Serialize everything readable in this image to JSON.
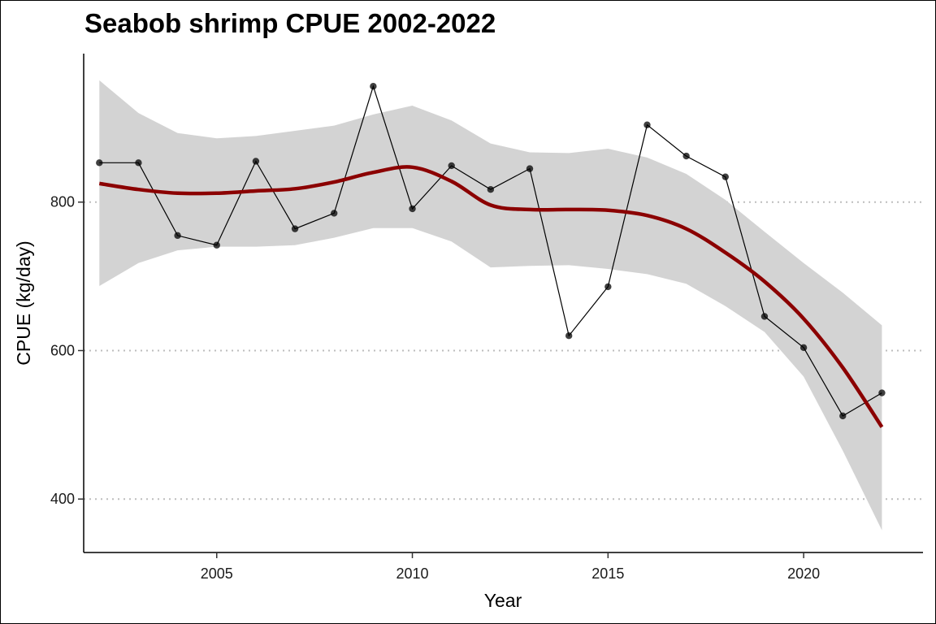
{
  "chart_data": {
    "type": "line",
    "title": "Seabob shrimp CPUE 2002-2022",
    "xlabel": "Year",
    "ylabel": "CPUE (kg/day)",
    "xlim": [
      2001.6,
      2023.05
    ],
    "ylim": [
      328,
      1000
    ],
    "xticks": [
      2005,
      2010,
      2015,
      2020
    ],
    "yticks": [
      400,
      600,
      800
    ],
    "grid": {
      "horizontal_dotted": true,
      "vertical": false
    },
    "series": [
      {
        "kind": "observed",
        "color": "#000000",
        "points": [
          {
            "x": 2002,
            "y": 853
          },
          {
            "x": 2003,
            "y": 853
          },
          {
            "x": 2004,
            "y": 755
          },
          {
            "x": 2005,
            "y": 742
          },
          {
            "x": 2006,
            "y": 855
          },
          {
            "x": 2007,
            "y": 764
          },
          {
            "x": 2008,
            "y": 785
          },
          {
            "x": 2009,
            "y": 956
          },
          {
            "x": 2010,
            "y": 791
          },
          {
            "x": 2011,
            "y": 849
          },
          {
            "x": 2012,
            "y": 817
          },
          {
            "x": 2013,
            "y": 845
          },
          {
            "x": 2014,
            "y": 620
          },
          {
            "x": 2015,
            "y": 686
          },
          {
            "x": 2016,
            "y": 904
          },
          {
            "x": 2017,
            "y": 862
          },
          {
            "x": 2018,
            "y": 834
          },
          {
            "x": 2019,
            "y": 646
          },
          {
            "x": 2020,
            "y": 604
          },
          {
            "x": 2021,
            "y": 512
          },
          {
            "x": 2022,
            "y": 543
          }
        ]
      },
      {
        "kind": "smooth",
        "color": "#8b0000",
        "points": [
          {
            "x": 2002,
            "y": 825
          },
          {
            "x": 2003,
            "y": 817
          },
          {
            "x": 2004,
            "y": 812
          },
          {
            "x": 2005,
            "y": 812
          },
          {
            "x": 2006,
            "y": 815
          },
          {
            "x": 2007,
            "y": 818
          },
          {
            "x": 2008,
            "y": 827
          },
          {
            "x": 2009,
            "y": 840
          },
          {
            "x": 2010,
            "y": 847
          },
          {
            "x": 2011,
            "y": 828
          },
          {
            "x": 2012,
            "y": 796
          },
          {
            "x": 2013,
            "y": 790
          },
          {
            "x": 2014,
            "y": 790
          },
          {
            "x": 2015,
            "y": 789
          },
          {
            "x": 2016,
            "y": 782
          },
          {
            "x": 2017,
            "y": 764
          },
          {
            "x": 2018,
            "y": 732
          },
          {
            "x": 2019,
            "y": 693
          },
          {
            "x": 2020,
            "y": 643
          },
          {
            "x": 2021,
            "y": 577
          },
          {
            "x": 2022,
            "y": 497
          }
        ]
      }
    ],
    "confidence_band": {
      "color": "#d3d3d3",
      "points": [
        {
          "x": 2002,
          "lo": 687,
          "hi": 964
        },
        {
          "x": 2003,
          "lo": 718,
          "hi": 920
        },
        {
          "x": 2004,
          "lo": 735,
          "hi": 893
        },
        {
          "x": 2005,
          "lo": 740,
          "hi": 886
        },
        {
          "x": 2006,
          "lo": 740,
          "hi": 889
        },
        {
          "x": 2007,
          "lo": 742,
          "hi": 896
        },
        {
          "x": 2008,
          "lo": 752,
          "hi": 903
        },
        {
          "x": 2009,
          "lo": 765,
          "hi": 918
        },
        {
          "x": 2010,
          "lo": 765,
          "hi": 930
        },
        {
          "x": 2011,
          "lo": 747,
          "hi": 910
        },
        {
          "x": 2012,
          "lo": 712,
          "hi": 879
        },
        {
          "x": 2013,
          "lo": 714,
          "hi": 867
        },
        {
          "x": 2014,
          "lo": 715,
          "hi": 866
        },
        {
          "x": 2015,
          "lo": 710,
          "hi": 872
        },
        {
          "x": 2016,
          "lo": 703,
          "hi": 860
        },
        {
          "x": 2017,
          "lo": 690,
          "hi": 838
        },
        {
          "x": 2018,
          "lo": 660,
          "hi": 803
        },
        {
          "x": 2019,
          "lo": 625,
          "hi": 760
        },
        {
          "x": 2020,
          "lo": 565,
          "hi": 718
        },
        {
          "x": 2021,
          "lo": 465,
          "hi": 678
        },
        {
          "x": 2022,
          "lo": 358,
          "hi": 634
        }
      ]
    }
  }
}
